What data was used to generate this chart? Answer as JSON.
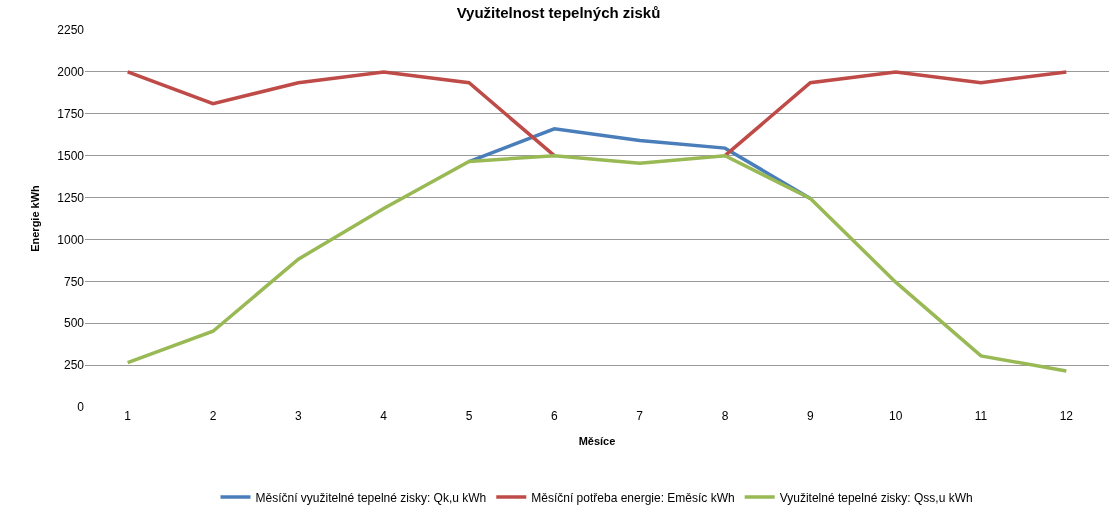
{
  "chart_data": {
    "type": "line",
    "title": "Využitelnost tepelných zisků",
    "xlabel": "Měsíce",
    "ylabel": "Energie kWh",
    "categories": [
      "1",
      "2",
      "3",
      "4",
      "5",
      "6",
      "7",
      "8",
      "9",
      "10",
      "11",
      "12"
    ],
    "series": [
      {
        "name": "Měsíční využitelné tepelné zisky: Qk,u kWh",
        "color": "#4a7ebb",
        "values": [
          null,
          null,
          null,
          null,
          1465,
          1660,
          1590,
          1545,
          1245,
          null,
          null,
          null
        ]
      },
      {
        "name": "Měsíční potřeba energie: Eměsíc kWh",
        "color": "#be4b48",
        "values": [
          2000,
          1810,
          1935,
          2000,
          1935,
          1500,
          null,
          1500,
          1935,
          2000,
          1935,
          2000
        ]
      },
      {
        "name": "Využitelné tepelné zisky: Qss,u kWh",
        "color": "#98b954",
        "values": [
          265,
          452,
          882,
          1185,
          1465,
          1500,
          1455,
          1500,
          1245,
          745,
          305,
          215
        ]
      }
    ],
    "ylim": [
      0,
      2250
    ],
    "yticks": [
      0,
      250,
      500,
      750,
      1000,
      1250,
      1500,
      1750,
      2000,
      2250
    ],
    "grid": "y",
    "legend": "bottom",
    "marker": "none",
    "line_style": "solid"
  }
}
